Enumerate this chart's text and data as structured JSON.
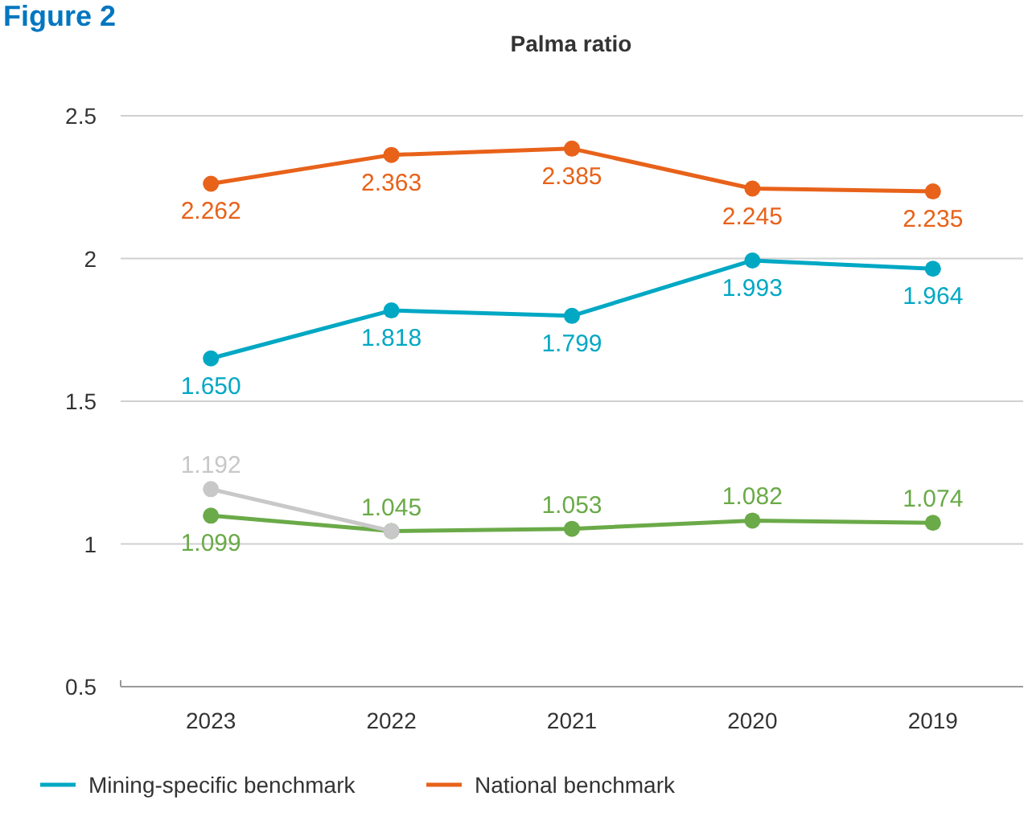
{
  "chart_data": {
    "type": "line",
    "title": "Palma ratio",
    "annotations": [
      "Figure 2"
    ],
    "categories": [
      "2023",
      "2022",
      "2021",
      "2020",
      "2019"
    ],
    "series": [
      {
        "color": "#6aaa48",
        "values": [
          1.099,
          1.045,
          1.053,
          1.082,
          1.074
        ],
        "value_labels": [
          "1.099",
          "1.045",
          "1.053",
          "1.082",
          "1.074"
        ]
      },
      {
        "color": "#c8c8c8",
        "values": [
          1.192,
          1.045,
          null,
          null,
          null
        ],
        "value_labels": [
          "1.192",
          null,
          null,
          null,
          null
        ]
      },
      {
        "name": "Mining-specific benchmark",
        "color": "#00a8c4",
        "values": [
          1.65,
          1.818,
          1.799,
          1.993,
          1.964
        ],
        "value_labels": [
          "1.650",
          "1.818",
          "1.799",
          "1.993",
          "1.964"
        ]
      },
      {
        "name": "National benchmark",
        "color": "#e8621a",
        "values": [
          2.262,
          2.363,
          2.385,
          2.245,
          2.235
        ],
        "value_labels": [
          "2.262",
          "2.363",
          "2.385",
          "2.245",
          "2.235"
        ]
      }
    ],
    "ylim": [
      0.5,
      2.5
    ],
    "yticks": [
      0.5,
      1,
      1.5,
      2,
      2.5
    ],
    "grid": "y",
    "legend": "bottom left",
    "marker": "circle",
    "line_style": "solid"
  }
}
